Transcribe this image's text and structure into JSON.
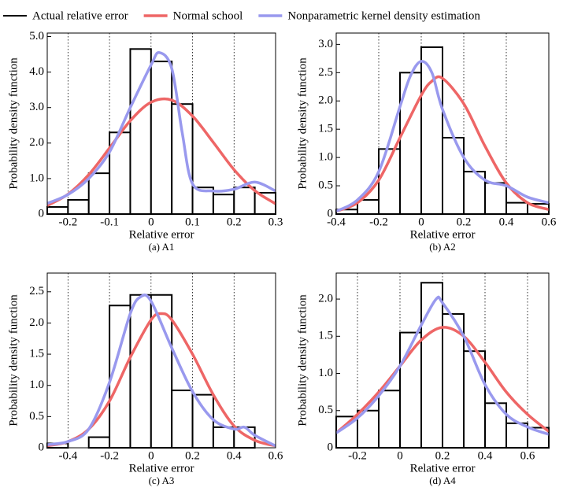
{
  "chart_data": [
    {
      "type": "histogram",
      "name": "Actual relative error",
      "color": "#000000",
      "legend": "top",
      "caption": "(a) A1",
      "xlabel": "Relative error",
      "ylabel": "Probability density function",
      "bins": [
        -0.25,
        -0.2,
        -0.15,
        -0.1,
        -0.05,
        0,
        0.05,
        0.1,
        0.15,
        0.2,
        0.25,
        0.3
      ],
      "values": [
        0.2,
        0.4,
        1.15,
        2.3,
        4.65,
        4.3,
        3.1,
        0.75,
        0.55,
        0.75,
        0.6
      ],
      "series": [
        {
          "name": "Normal school",
          "color": "#ee6666",
          "x": [
            -0.25,
            -0.2,
            -0.15,
            -0.1,
            -0.05,
            0,
            0.05,
            0.1,
            0.15,
            0.2,
            0.25,
            0.3
          ],
          "values": [
            0.24,
            0.56,
            1.11,
            1.86,
            2.63,
            3.15,
            3.21,
            2.76,
            2.02,
            1.25,
            0.66,
            0.29
          ]
        },
        {
          "name": "Nonparametric kernel density estimation",
          "color": "#9999ee",
          "x": [
            -0.25,
            -0.2,
            -0.15,
            -0.1,
            -0.05,
            0,
            0.02,
            0.05,
            0.075,
            0.1,
            0.15,
            0.2,
            0.25,
            0.3
          ],
          "values": [
            0.3,
            0.55,
            1.0,
            1.75,
            3.0,
            4.2,
            4.55,
            4.1,
            2.3,
            0.85,
            0.65,
            0.7,
            0.9,
            0.65
          ]
        }
      ],
      "xlim": [
        -0.25,
        0.3
      ],
      "xticks": [
        -0.2,
        -0.1,
        0,
        0.1,
        0.2,
        0.3
      ],
      "ylim": [
        0,
        5.1
      ],
      "yticks": [
        0,
        {
          "value": 1,
          "label": "1.0"
        },
        {
          "value": 2,
          "label": "2.0"
        },
        {
          "value": 3,
          "label": "3.0"
        },
        {
          "value": 4,
          "label": "4.0"
        },
        {
          "value": 5,
          "label": "5.0"
        }
      ],
      "grid": "x"
    },
    {
      "type": "histogram",
      "color": "#000000",
      "caption": "(b) A2",
      "xlabel": "Relative error",
      "ylabel": "Probability density function",
      "bins": [
        -0.4,
        -0.3,
        -0.2,
        -0.1,
        0,
        0.1,
        0.2,
        0.3,
        0.4,
        0.5,
        0.6
      ],
      "values": [
        0.08,
        0.25,
        1.15,
        2.5,
        2.95,
        1.35,
        0.75,
        0.55,
        0.2,
        0.18
      ],
      "series": [
        {
          "color": "#ee6666",
          "x": [
            -0.4,
            -0.3,
            -0.2,
            -0.1,
            0,
            0.05,
            0.1,
            0.2,
            0.3,
            0.4,
            0.5,
            0.6
          ],
          "values": [
            0.05,
            0.2,
            0.6,
            1.35,
            2.1,
            2.35,
            2.4,
            1.95,
            1.2,
            0.55,
            0.2,
            0.08
          ]
        },
        {
          "color": "#9999ee",
          "x": [
            -0.4,
            -0.3,
            -0.2,
            -0.1,
            -0.05,
            0,
            0.05,
            0.1,
            0.2,
            0.3,
            0.4,
            0.5,
            0.6
          ],
          "values": [
            0.05,
            0.25,
            0.75,
            1.9,
            2.45,
            2.7,
            2.5,
            1.85,
            1.0,
            0.6,
            0.5,
            0.3,
            0.2
          ]
        }
      ],
      "xlim": [
        -0.4,
        0.6
      ],
      "xticks": [
        -0.4,
        -0.2,
        0,
        0.2,
        0.4,
        0.6
      ],
      "ylim": [
        0,
        3.2
      ],
      "yticks": [
        0,
        0.5,
        {
          "value": 1,
          "label": "1.0"
        },
        1.5,
        {
          "value": 2,
          "label": "2.0"
        },
        2.5,
        {
          "value": 3,
          "label": "3.0"
        }
      ],
      "grid": "x"
    },
    {
      "type": "histogram",
      "color": "#000000",
      "caption": "(c) A3",
      "xlabel": "Relative error",
      "ylabel": "Probability density function",
      "bins": [
        -0.5,
        -0.4,
        -0.3,
        -0.2,
        -0.1,
        0,
        0.1,
        0.2,
        0.3,
        0.4,
        0.5,
        0.6
      ],
      "values": [
        0.07,
        0,
        0.17,
        2.28,
        2.45,
        2.45,
        0.92,
        0.85,
        0.33,
        0.33,
        0
      ],
      "series": [
        {
          "color": "#ee6666",
          "x": [
            -0.5,
            -0.4,
            -0.3,
            -0.2,
            -0.1,
            0,
            0.05,
            0.1,
            0.2,
            0.3,
            0.4,
            0.5,
            0.6
          ],
          "values": [
            0.03,
            0.1,
            0.3,
            0.75,
            1.45,
            2.05,
            2.15,
            2.05,
            1.5,
            0.85,
            0.35,
            0.12,
            0.03
          ]
        },
        {
          "color": "#9999ee",
          "x": [
            -0.5,
            -0.4,
            -0.3,
            -0.2,
            -0.1,
            -0.05,
            0,
            0.1,
            0.2,
            0.3,
            0.4,
            0.45,
            0.5,
            0.6
          ],
          "values": [
            0.05,
            0.1,
            0.3,
            1.05,
            2.15,
            2.42,
            2.35,
            1.6,
            0.9,
            0.45,
            0.3,
            0.33,
            0.2,
            0.03
          ]
        }
      ],
      "xlim": [
        -0.5,
        0.6
      ],
      "xticks": [
        -0.4,
        -0.2,
        0,
        0.2,
        0.4,
        0.6
      ],
      "ylim": [
        0,
        2.8
      ],
      "yticks": [
        0,
        0.5,
        {
          "value": 1,
          "label": "1.0"
        },
        1.5,
        {
          "value": 2,
          "label": "2.0"
        },
        2.5
      ],
      "grid": "x"
    },
    {
      "type": "histogram",
      "color": "#000000",
      "caption": "(d) A4",
      "xlabel": "Relative error",
      "ylabel": "Probability density function",
      "bins": [
        -0.3,
        -0.2,
        -0.1,
        0,
        0.1,
        0.2,
        0.3,
        0.4,
        0.5,
        0.6,
        0.7
      ],
      "values": [
        0.42,
        0.5,
        0.77,
        1.55,
        2.22,
        1.8,
        1.3,
        0.6,
        0.33,
        0.27
      ],
      "series": [
        {
          "color": "#ee6666",
          "x": [
            -0.3,
            -0.2,
            -0.1,
            0,
            0.1,
            0.2,
            0.3,
            0.4,
            0.5,
            0.6,
            0.7
          ],
          "values": [
            0.2,
            0.45,
            0.75,
            1.1,
            1.45,
            1.62,
            1.5,
            1.15,
            0.75,
            0.45,
            0.22
          ]
        },
        {
          "color": "#9999ee",
          "x": [
            -0.3,
            -0.2,
            -0.1,
            0,
            0.1,
            0.17,
            0.2,
            0.3,
            0.4,
            0.5,
            0.6,
            0.7
          ],
          "values": [
            0.2,
            0.4,
            0.7,
            1.1,
            1.65,
            2.0,
            1.95,
            1.5,
            0.85,
            0.45,
            0.28,
            0.18
          ]
        }
      ],
      "xlim": [
        -0.3,
        0.7
      ],
      "xticks": [
        -0.2,
        0,
        0.2,
        0.4,
        0.6
      ],
      "ylim": [
        0,
        2.35
      ],
      "yticks": [
        0,
        0.5,
        {
          "value": 1,
          "label": "1.0"
        },
        1.5,
        {
          "value": 2,
          "label": "2.0"
        }
      ],
      "grid": "x"
    }
  ]
}
